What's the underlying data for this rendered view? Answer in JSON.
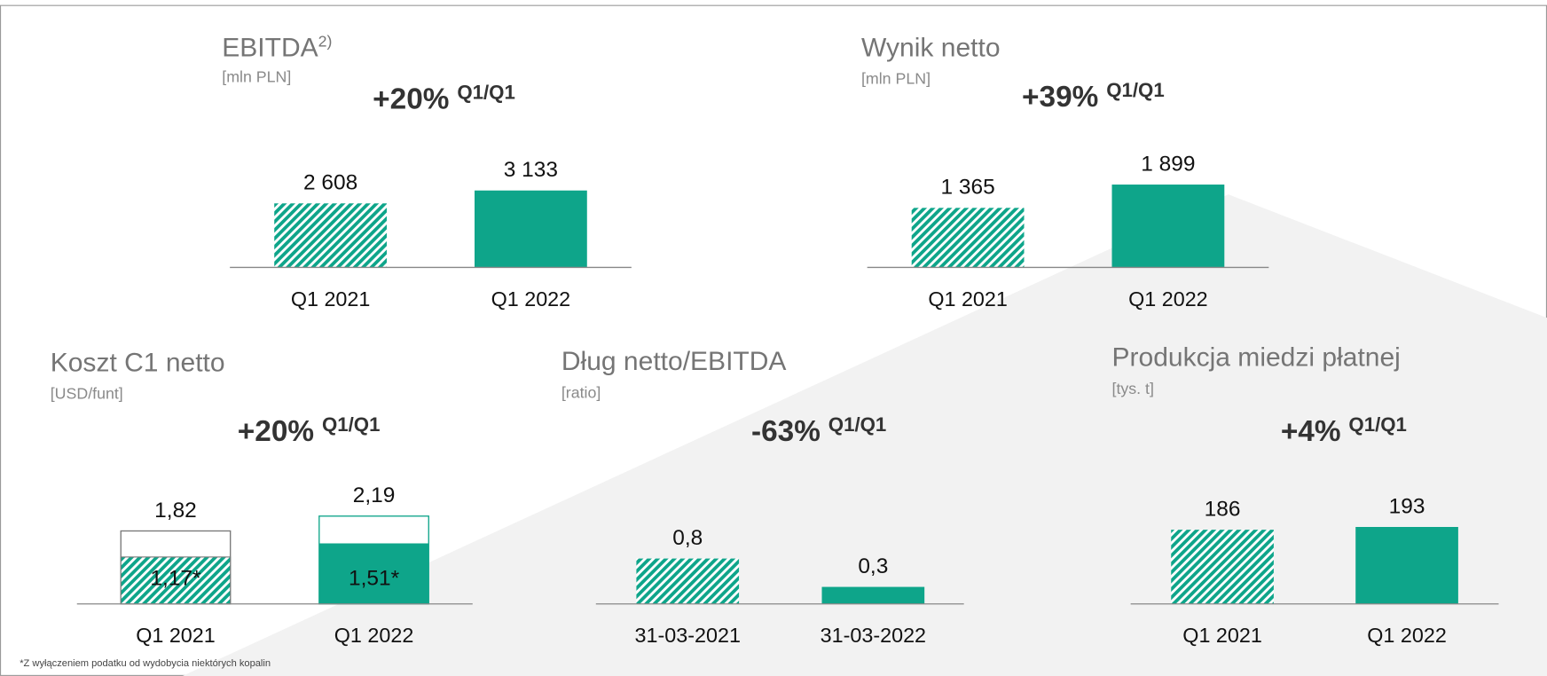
{
  "footnote": "*Z wyłączeniem podatku od wydobycia niektórych kopalin",
  "chart_data": [
    {
      "type": "bar",
      "title": "EBITDA",
      "title_sup": "2)",
      "unit": "[mln PLN]",
      "change": "+20%",
      "change_period": "Q1/Q1",
      "categories": [
        "Q1 2021",
        "Q1 2022"
      ],
      "values": [
        2608,
        3133
      ],
      "value_labels": [
        "2 608",
        "3 133"
      ],
      "color": "#0ea58a"
    },
    {
      "type": "bar",
      "title": "Wynik netto",
      "unit": "[mln PLN]",
      "change": "+39%",
      "change_period": "Q1/Q1",
      "categories": [
        "Q1 2021",
        "Q1 2022"
      ],
      "values": [
        1365,
        1899
      ],
      "value_labels": [
        "1 365",
        "1 899"
      ],
      "color": "#0ea58a"
    },
    {
      "type": "bar",
      "title": "Koszt C1 netto",
      "unit": "[USD/funt]",
      "change": "+20%",
      "change_period": "Q1/Q1",
      "categories": [
        "Q1 2021",
        "Q1 2022"
      ],
      "values": [
        1.82,
        2.19
      ],
      "value_labels": [
        "1,82",
        "2,19"
      ],
      "inner_values": [
        1.17,
        1.51
      ],
      "inner_labels": [
        "1,17*",
        "1,51*"
      ],
      "color": "#0ea58a"
    },
    {
      "type": "bar",
      "title": "Dług netto/EBITDA",
      "unit": "[ratio]",
      "change": "-63%",
      "change_period": "Q1/Q1",
      "categories": [
        "31-03-2021",
        "31-03-2022"
      ],
      "values": [
        0.8,
        0.3
      ],
      "value_labels": [
        "0,8",
        "0,3"
      ],
      "color": "#0ea58a"
    },
    {
      "type": "bar",
      "title": "Produkcja miedzi płatnej",
      "unit": "[tys. t]",
      "change": "+4%",
      "change_period": "Q1/Q1",
      "categories": [
        "Q1 2021",
        "Q1 2022"
      ],
      "values": [
        186,
        193
      ],
      "color": "#0ea58a"
    }
  ]
}
